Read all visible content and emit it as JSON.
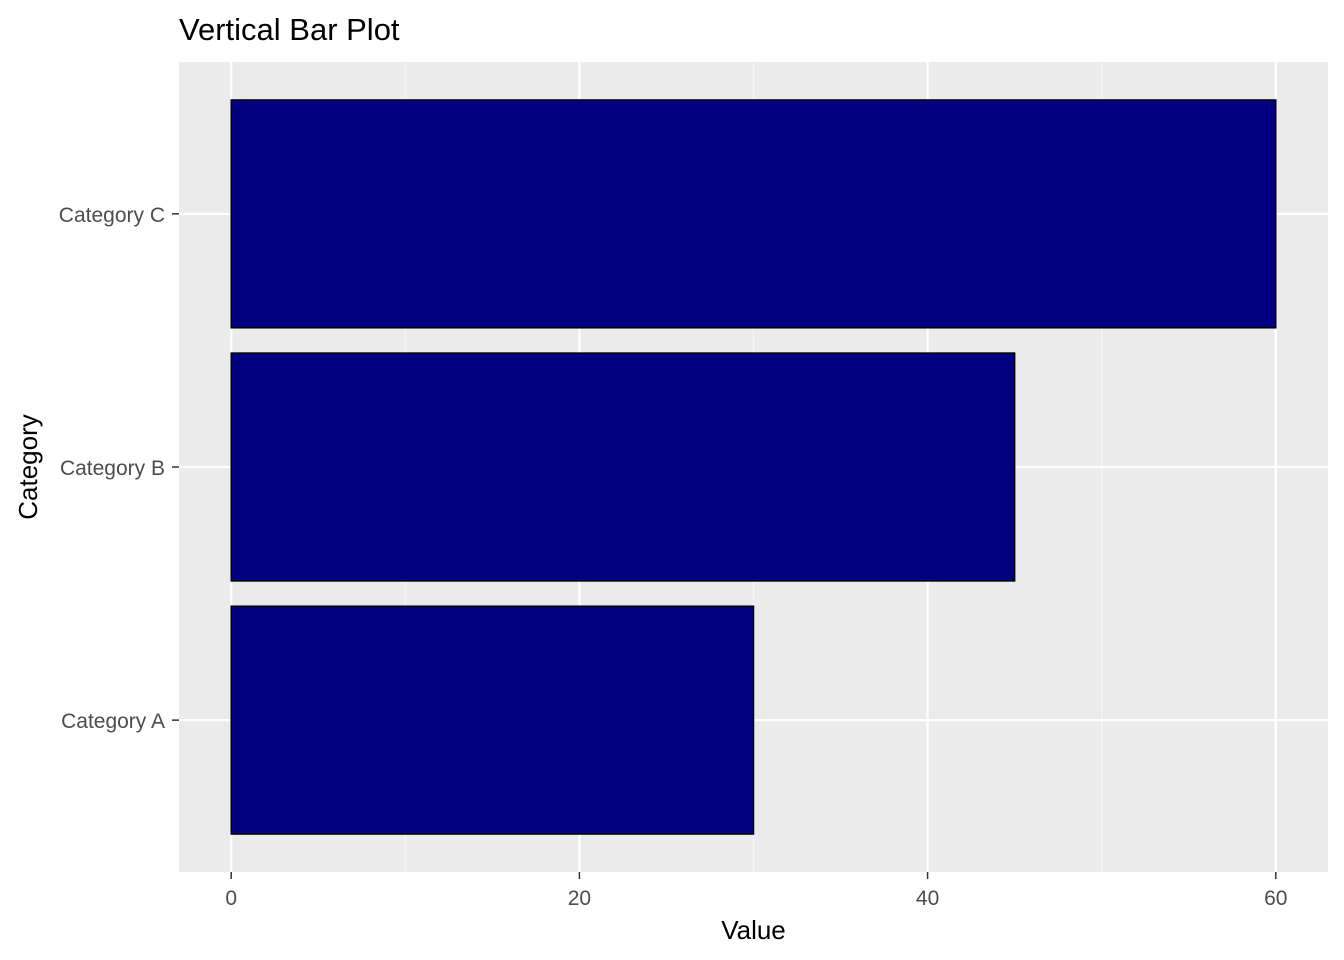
{
  "colors": {
    "panel_background": "#ebebeb",
    "grid_major": "#ffffff",
    "grid_minor": "#f5f5f5",
    "bar_fill": "#000080",
    "bar_outline": "#000000",
    "tick_color": "#333333",
    "tick_label_color": "#4d4d4d"
  },
  "chart_data": {
    "type": "bar",
    "orientation": "horizontal",
    "title": "Vertical Bar Plot",
    "xlabel": "Value",
    "ylabel": "Category",
    "categories": [
      "Category A",
      "Category B",
      "Category C"
    ],
    "values": [
      30,
      45,
      60
    ],
    "xlim": [
      -3,
      63
    ],
    "x_ticks": [
      0,
      20,
      40,
      60
    ],
    "x_tick_labels": [
      "0",
      "20",
      "40",
      "60"
    ],
    "x_minor_ticks": [
      10,
      30,
      50
    ],
    "grid": true,
    "legend": "none"
  }
}
